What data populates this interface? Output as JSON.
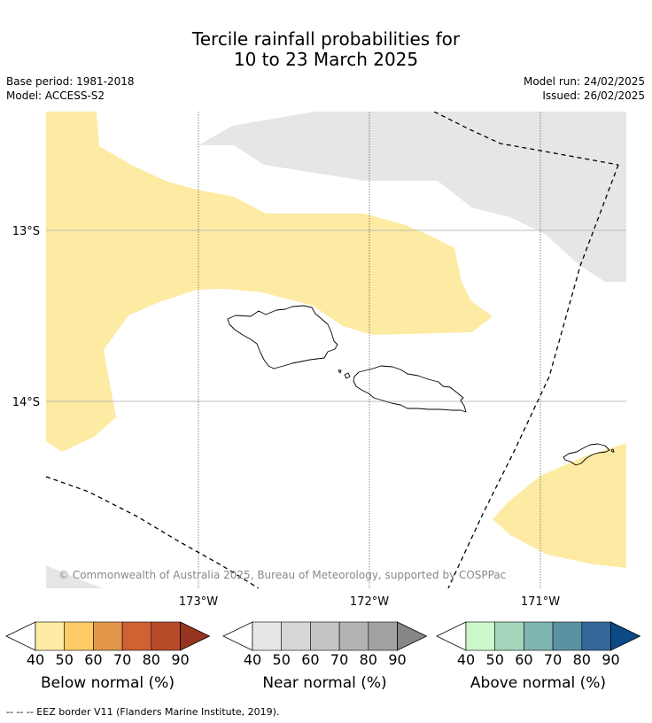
{
  "title": {
    "line1": "Tercile rainfall probabilities for",
    "line2": "10 to 23 March 2025"
  },
  "meta": {
    "base_period": "Base period: 1981-2018",
    "model": "Model: ACCESS-S2",
    "model_run": "Model run: 24/02/2025",
    "issued": "Issued: 26/02/2025"
  },
  "map": {
    "lat_labels": [
      "13°S",
      "14°S"
    ],
    "lon_labels": [
      "173°W",
      "172°W",
      "171°W"
    ],
    "copyright": "© Commonwealth of Australia 2025, Bureau of Meteorology, supported by COSPPac",
    "colors": {
      "below_40": "#fdeba4",
      "near_40": "#e6e6e6",
      "coast": "#000000",
      "grid": "#aaaaaa",
      "copyright_text": "#888888"
    }
  },
  "colorbars": [
    {
      "label": "Below normal (%)",
      "ticks": [
        "40",
        "50",
        "60",
        "70",
        "80",
        "90"
      ],
      "colors": [
        "#fdeba4",
        "#fdcc66",
        "#e3964a",
        "#cf6133",
        "#b54a28",
        "#973420"
      ]
    },
    {
      "label": "Near normal (%)",
      "ticks": [
        "40",
        "50",
        "60",
        "70",
        "80",
        "90"
      ],
      "colors": [
        "#e6e6e6",
        "#d7d7d7",
        "#c5c5c5",
        "#b3b3b3",
        "#a1a1a1",
        "#868686"
      ]
    },
    {
      "label": "Above normal (%)",
      "ticks": [
        "40",
        "50",
        "60",
        "70",
        "80",
        "90"
      ],
      "colors": [
        "#cbf8cb",
        "#a4d5ba",
        "#80b4b0",
        "#5a92a3",
        "#336799",
        "#0c4a85"
      ]
    }
  ],
  "footer": "--  --  -- EEZ border V11 (Flanders Marine Institute, 2019)."
}
